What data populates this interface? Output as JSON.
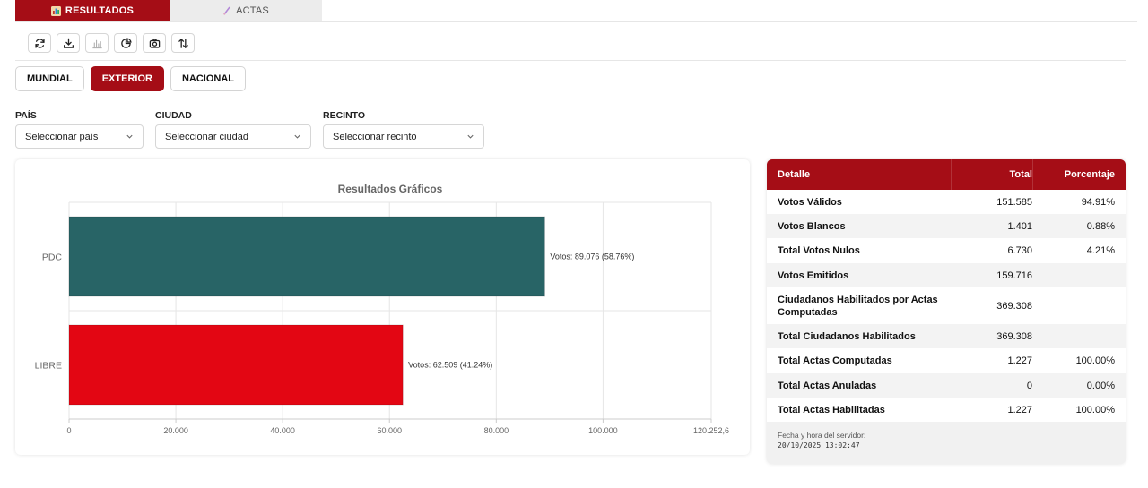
{
  "tabs": [
    {
      "label": "RESULTADOS",
      "icon": "bar-chart-icon",
      "active": true
    },
    {
      "label": "ACTAS",
      "icon": "document-icon",
      "active": false
    }
  ],
  "toolbar": [
    "refresh-icon",
    "download-icon",
    "bar-chart-icon",
    "pie-chart-icon",
    "camera-icon",
    "sort-icon"
  ],
  "scopes": [
    {
      "label": "MUNDIAL",
      "active": false
    },
    {
      "label": "EXTERIOR",
      "active": true
    },
    {
      "label": "NACIONAL",
      "active": false
    }
  ],
  "filters": {
    "pais": {
      "label": "PAÍS",
      "value": "Seleccionar país"
    },
    "ciudad": {
      "label": "CIUDAD",
      "value": "Seleccionar ciudad"
    },
    "recinto": {
      "label": "RECINTO",
      "value": "Seleccionar recinto"
    }
  },
  "chart_data": {
    "type": "bar",
    "orientation": "horizontal",
    "title": "Resultados Gráficos",
    "categories": [
      "PDC",
      "LIBRE"
    ],
    "values": [
      89076,
      62509
    ],
    "labels": [
      "Votos: 89.076 (58.76%)",
      "Votos: 62.509 (41.24%)"
    ],
    "colors": [
      "#286466",
      "#e30613"
    ],
    "xlim": [
      0,
      120252.6
    ],
    "xticks": [
      0,
      20000,
      40000,
      60000,
      80000,
      100000,
      120252.6
    ],
    "xtick_labels": [
      "0",
      "20.000",
      "40.000",
      "60.000",
      "80.000",
      "100.000",
      "120.252,6"
    ],
    "grid": true
  },
  "table": {
    "headers": {
      "detail": "Detalle",
      "total": "Total",
      "pct": "Porcentaje"
    },
    "rows": [
      {
        "detail": "Votos Válidos",
        "total": "151.585",
        "pct": "94.91%"
      },
      {
        "detail": "Votos Blancos",
        "total": "1.401",
        "pct": "0.88%"
      },
      {
        "detail": "Total Votos Nulos",
        "total": "6.730",
        "pct": "4.21%"
      },
      {
        "detail": "Votos Emitidos",
        "total": "159.716",
        "pct": ""
      },
      {
        "detail": "Ciudadanos Habilitados por Actas Computadas",
        "total": "369.308",
        "pct": ""
      },
      {
        "detail": "Total Ciudadanos Habilitados",
        "total": "369.308",
        "pct": ""
      },
      {
        "detail": "Total Actas Computadas",
        "total": "1.227",
        "pct": "100.00%"
      },
      {
        "detail": "Total Actas Anuladas",
        "total": "0",
        "pct": "0.00%"
      },
      {
        "detail": "Total Actas Habilitadas",
        "total": "1.227",
        "pct": "100.00%"
      }
    ],
    "footer_label": "Fecha y hora del servidor:",
    "footer_time": "20/10/2025 13:02:47"
  }
}
